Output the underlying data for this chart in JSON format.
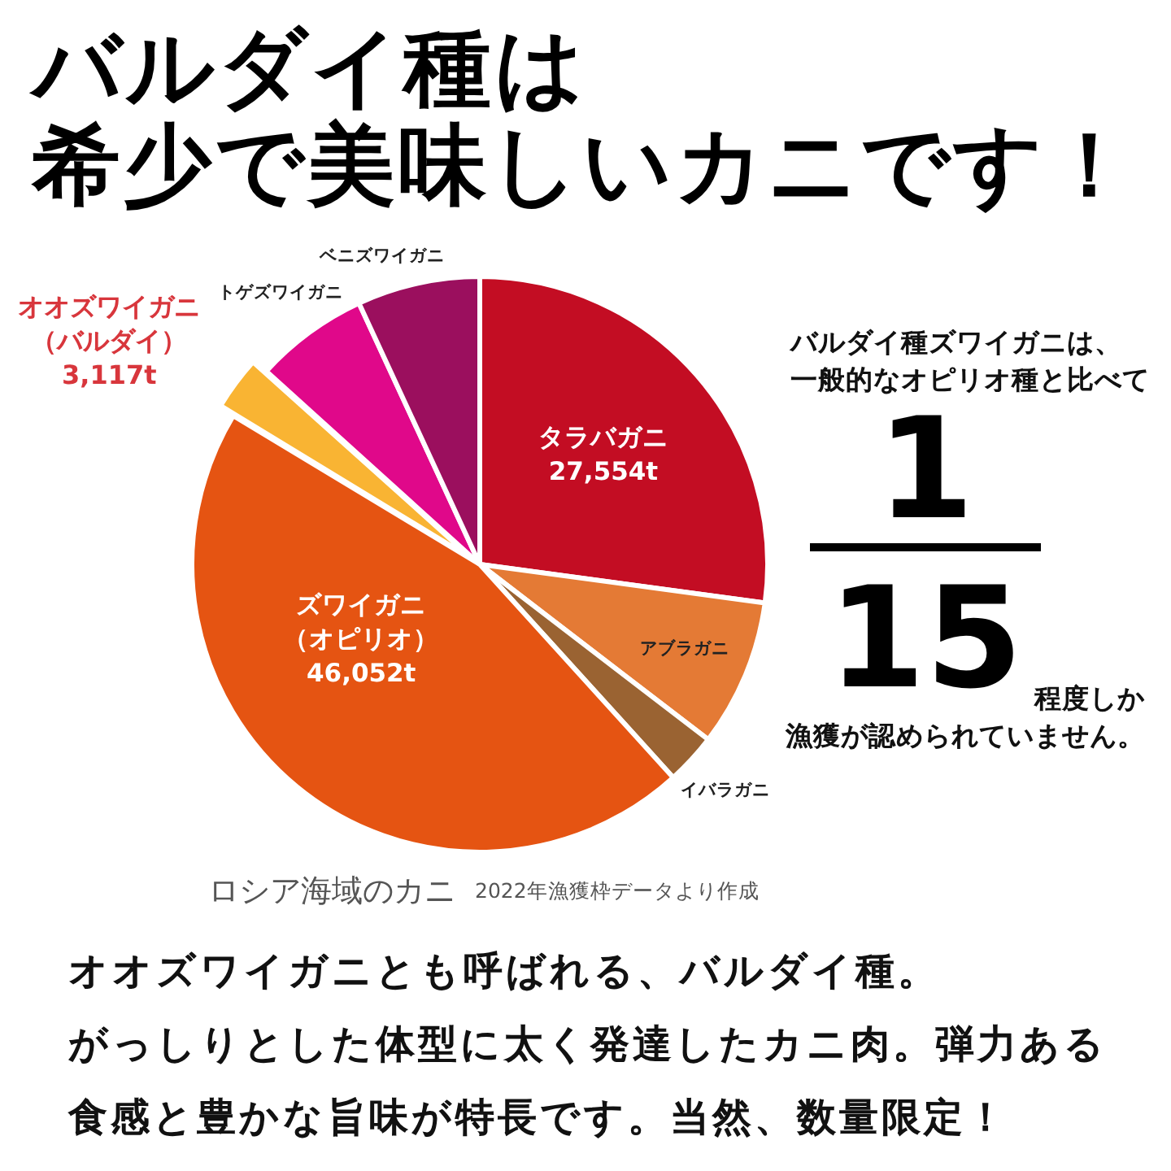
{
  "chart_data": {
    "type": "pie",
    "title": "バルダイ種は希少で美味しいカニです！",
    "categories": [
      "タラバガニ",
      "アブラガニ",
      "イバラガニ",
      "ズワイガニ（オピリオ）",
      "オオズワイガニ（バルダイ）",
      "トゲズワイガニ",
      "ベニズワイガニ"
    ],
    "values": [
      27554,
      8400,
      2900,
      46052,
      3117,
      6500,
      7000
    ],
    "colors": [
      "#c30d23",
      "#e47a35",
      "#9a6332",
      "#e55412",
      "#f9b433",
      "#e0088a",
      "#9b0f5e"
    ],
    "value_labels": [
      "27,554t",
      null,
      null,
      "46,052t",
      "3,117t",
      null,
      null
    ],
    "annotations": [
      "バルダイ種ズワイガニは、",
      "一般的なオピリオ種と比べて",
      "1",
      "15",
      "程度しか",
      "漁獲が認められていません。",
      "ロシア海域のカニ",
      "2022年漁獲枠データより作成",
      "オオズワイガニとも呼ばれる、バルダイ種。",
      "がっしりとした体型に太く発達したカニ肉。弾力ある食感と豊かな旨味が特長です。当然、数量限定！"
    ]
  }
}
